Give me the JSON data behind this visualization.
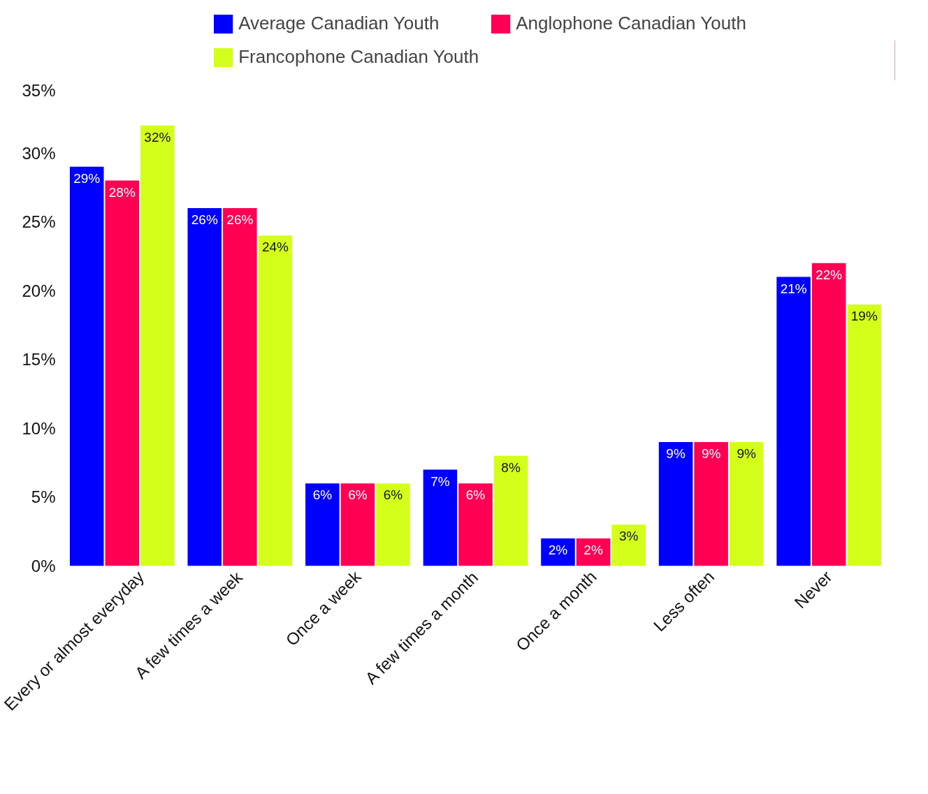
{
  "chart_data": {
    "type": "bar",
    "categories": [
      "Every or almost everyday",
      "A few times a week",
      "Once a week",
      "A few times a month",
      "Once a month",
      "Less often",
      "Never"
    ],
    "series": [
      {
        "name": "Average Canadian Youth",
        "color": "#0000ff",
        "values": [
          29,
          26,
          6,
          7,
          2,
          9,
          21
        ],
        "value_labels": [
          "29%",
          "26%",
          "6%",
          "7%",
          "2%",
          "9%",
          "21%"
        ]
      },
      {
        "name": "Anglophone Canadian Youth",
        "color": "#ff0055",
        "values": [
          28,
          26,
          6,
          6,
          2,
          9,
          22
        ],
        "value_labels": [
          "28%",
          "26%",
          "6%",
          "6%",
          "2%",
          "9%",
          "22%"
        ]
      },
      {
        "name": "Francophone Canadian Youth",
        "color": "#d4ff1a",
        "values": [
          32,
          24,
          6,
          8,
          3,
          9,
          19
        ],
        "value_labels": [
          "32%",
          "24%",
          "6%",
          "8%",
          "3%",
          "9%",
          "19%"
        ]
      }
    ],
    "ylim": [
      0,
      35
    ],
    "yticks": [
      {
        "value": 0,
        "label": "0%"
      },
      {
        "value": 5,
        "label": "5%"
      },
      {
        "value": 10,
        "label": "10%"
      },
      {
        "value": 15,
        "label": "15%"
      },
      {
        "value": 20,
        "label": "20%"
      },
      {
        "value": 25,
        "label": "25%"
      },
      {
        "value": 30,
        "label": "30%"
      },
      {
        "value": 35,
        "label": "35%"
      }
    ],
    "grid": false,
    "legend": "top"
  }
}
